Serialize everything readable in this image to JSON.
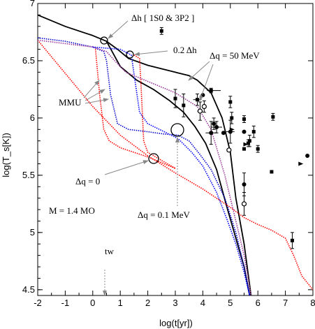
{
  "chart_data": {
    "type": "line",
    "xlabel": "log(t[yr])",
    "ylabel": "log(T_s[K])",
    "xlim": [
      -2,
      8
    ],
    "ylim": [
      4.45,
      7
    ],
    "x_ticks": [
      "-2",
      "-1",
      "0",
      "1",
      "2",
      "3",
      "4",
      "5",
      "6",
      "7",
      "8"
    ],
    "y_ticks": [
      "4.5",
      "5",
      "5.5",
      "6",
      "6.5",
      "7"
    ],
    "grid": false,
    "series": [
      {
        "color": "#000000",
        "style": "solid",
        "x": [
          -2,
          -1,
          0,
          0.5,
          0.9,
          1.3,
          2.0,
          3.0,
          3.5,
          3.8,
          4.3,
          4.7,
          5.0,
          5.2,
          5.5,
          5.75
        ],
        "y": [
          6.9,
          6.8,
          6.72,
          6.67,
          6.6,
          6.52,
          6.46,
          6.4,
          6.37,
          6.33,
          6.22,
          6.0,
          5.7,
          5.3,
          4.9,
          4.45
        ]
      },
      {
        "color": "#000000",
        "style": "solid",
        "x": [
          0.5,
          1.0,
          1.6,
          2.2,
          2.8,
          3.3,
          3.7,
          4.1,
          4.5,
          4.9,
          5.2,
          5.5,
          5.7
        ],
        "y": [
          6.67,
          6.45,
          6.33,
          6.25,
          6.15,
          6.05,
          5.93,
          5.78,
          5.55,
          5.2,
          4.95,
          4.7,
          4.45
        ]
      },
      {
        "color": "#0000cc",
        "style": "dotted",
        "x": [
          -2,
          -1,
          0,
          0.4,
          0.5,
          0.65,
          0.9,
          1.3,
          2.0,
          2.6,
          3.1,
          3.5,
          3.9,
          4.3,
          4.8,
          5.2,
          5.5,
          5.7
        ],
        "y": [
          6.7,
          6.67,
          6.62,
          6.58,
          6.5,
          6.2,
          5.95,
          5.9,
          5.88,
          5.86,
          5.85,
          5.8,
          5.68,
          5.55,
          5.3,
          5.0,
          4.7,
          4.45
        ]
      },
      {
        "color": "#0000ff",
        "style": "dotted",
        "x": [
          0,
          1.0,
          1.4,
          1.55,
          1.7,
          2.0,
          2.6,
          3.1,
          3.6,
          4.0,
          4.5,
          4.9,
          5.2,
          5.5,
          5.7
        ],
        "y": [
          6.62,
          6.6,
          6.55,
          6.3,
          6.05,
          5.95,
          5.88,
          5.82,
          5.7,
          5.58,
          5.35,
          5.1,
          4.9,
          4.65,
          4.45
        ]
      },
      {
        "color": "#ff0000",
        "style": "dotted",
        "x": [
          0.1,
          0.25,
          0.4,
          0.6,
          1.0,
          1.5,
          2.0,
          2.5,
          3.0
        ],
        "y": [
          6.6,
          6.2,
          5.9,
          5.8,
          5.74,
          5.7,
          5.66,
          5.61,
          5.56
        ]
      },
      {
        "color": "#ff0000",
        "style": "dotted",
        "x": [
          1.5,
          1.7,
          1.75,
          1.85,
          2.0,
          2.5,
          3.0
        ],
        "y": [
          6.55,
          6.52,
          6.3,
          5.8,
          5.7,
          5.63,
          5.56
        ]
      },
      {
        "color": "#ff0000",
        "style": "dotted",
        "x": [
          -2,
          -1,
          0,
          1,
          2,
          3,
          4,
          5,
          5.5,
          6,
          6.5,
          7,
          7.3,
          7.6,
          8
        ],
        "y": [
          6.68,
          6.39,
          6.1,
          5.85,
          5.67,
          5.52,
          5.38,
          5.22,
          5.13,
          5.07,
          5.02,
          4.95,
          4.8,
          4.62,
          4.5
        ]
      },
      {
        "color": "#993399",
        "style": "dotted",
        "x": [
          -2,
          -1,
          0,
          0.5,
          0.8,
          1.2,
          2.0,
          3.0,
          3.8,
          4.3,
          4.8,
          5.2,
          5.5,
          5.75
        ],
        "y": [
          6.68,
          6.65,
          6.62,
          6.58,
          6.5,
          6.4,
          6.32,
          6.22,
          6.1,
          5.9,
          5.5,
          5.1,
          4.8,
          4.45
        ]
      }
    ],
    "observations": [
      {
        "x": 2.5,
        "y": 6.76,
        "marker": "square-filled",
        "xerr": [
          0,
          0
        ],
        "yerr": [
          0.03,
          0.03
        ]
      },
      {
        "x": 3.3,
        "y": 6.11,
        "marker": "square-filled",
        "xerr": [
          0,
          0
        ],
        "yerr": [
          0.1,
          0.1
        ]
      },
      {
        "x": 3.0,
        "y": 6.17,
        "marker": "square-filled",
        "xerr": [
          0,
          0
        ],
        "yerr": [
          0.08,
          0.08
        ]
      },
      {
        "x": 3.8,
        "y": 6.16,
        "marker": "square-filled",
        "xerr": [
          0.15,
          0.15
        ],
        "yerr": [
          0.05,
          0.05
        ]
      },
      {
        "x": 4.3,
        "y": 6.24,
        "marker": "square-filled",
        "xerr": [
          0.15,
          0.35
        ],
        "yerr": [
          0.02,
          0.02
        ]
      },
      {
        "x": 3.9,
        "y": 6.06,
        "marker": "circle-open",
        "xerr": [
          0.1,
          0.1
        ],
        "yerr": [
          0.08,
          0.08
        ]
      },
      {
        "x": 4.0,
        "y": 6.2,
        "marker": "circle-filled",
        "xerr": [
          0,
          0
        ],
        "yerr": [
          0,
          0
        ]
      },
      {
        "x": 4.05,
        "y": 6.1,
        "marker": "circle-open",
        "xerr": [
          0,
          0
        ],
        "yerr": [
          0.05,
          0.05
        ]
      },
      {
        "x": 4.3,
        "y": 5.87,
        "marker": "circle-filled",
        "xerr": [
          0.2,
          0.2
        ],
        "yerr": [
          0.1,
          0.1
        ]
      },
      {
        "x": 4.5,
        "y": 5.92,
        "marker": "circle-filled",
        "xerr": [
          0.2,
          0.2
        ],
        "yerr": [
          0.05,
          0.05
        ]
      },
      {
        "x": 4.4,
        "y": 5.95,
        "marker": "circle-filled",
        "xerr": [
          0,
          0
        ],
        "yerr": [
          0.05,
          0.05
        ]
      },
      {
        "x": 5.0,
        "y": 6.14,
        "marker": "square-filled",
        "xerr": [
          0,
          0
        ],
        "yerr": [
          0.05,
          0.05
        ]
      },
      {
        "x": 5.05,
        "y": 6.0,
        "marker": "square-filled",
        "xerr": [
          0,
          0
        ],
        "yerr": [
          0.05,
          0.05
        ]
      },
      {
        "x": 5.5,
        "y": 5.99,
        "marker": "square-filled",
        "xerr": [
          0,
          0
        ],
        "yerr": [
          0.03,
          0.03
        ]
      },
      {
        "x": 4.75,
        "y": 5.87,
        "marker": "circle-filled",
        "xerr": [
          0,
          0
        ],
        "yerr": [
          0,
          0
        ]
      },
      {
        "x": 5.0,
        "y": 5.88,
        "marker": "circle-filled",
        "xerr": [
          0.15,
          0.15
        ],
        "yerr": [
          0.1,
          0.1
        ]
      },
      {
        "x": 5.05,
        "y": 5.9,
        "marker": "triangle-filled",
        "xerr": [
          0,
          0
        ],
        "yerr": [
          0,
          0
        ]
      },
      {
        "x": 5.5,
        "y": 5.88,
        "marker": "circle-filled",
        "xerr": [
          0,
          0
        ],
        "yerr": [
          0,
          0
        ]
      },
      {
        "x": 5.7,
        "y": 5.8,
        "marker": "square-filled",
        "xerr": [
          0,
          0
        ],
        "yerr": [
          0.05,
          0.05
        ]
      },
      {
        "x": 5.55,
        "y": 5.77,
        "marker": "triangle-filled",
        "xerr": [
          0,
          0
        ],
        "yerr": [
          0,
          0
        ]
      },
      {
        "x": 5.65,
        "y": 5.78,
        "marker": "square-filled",
        "xerr": [
          0,
          0
        ],
        "yerr": [
          0.03,
          0.03
        ]
      },
      {
        "x": 5.85,
        "y": 5.88,
        "marker": "square-filled",
        "xerr": [
          0,
          0
        ],
        "yerr": [
          0.05,
          0.05
        ]
      },
      {
        "x": 4.95,
        "y": 5.72,
        "marker": "circle-open",
        "xerr": [
          0,
          0
        ],
        "yerr": [
          0,
          0
        ]
      },
      {
        "x": 5.5,
        "y": 5.73,
        "marker": "square-filled",
        "xerr": [
          0,
          0
        ],
        "yerr": [
          0,
          0
        ]
      },
      {
        "x": 5.5,
        "y": 5.42,
        "marker": "circle-filled",
        "xerr": [
          0,
          0
        ],
        "yerr": [
          0.1,
          0.1
        ]
      },
      {
        "x": 5.5,
        "y": 5.25,
        "marker": "circle-open",
        "xerr": [
          0,
          0
        ],
        "yerr": [
          0.1,
          0.1
        ]
      },
      {
        "x": 6.0,
        "y": 5.73,
        "marker": "square-filled",
        "xerr": [
          0,
          0
        ],
        "yerr": [
          0.03,
          0.03
        ]
      },
      {
        "x": 6.55,
        "y": 6.01,
        "marker": "square-filled",
        "xerr": [
          0,
          0
        ],
        "yerr": [
          0.03,
          0.03
        ]
      },
      {
        "x": 6.5,
        "y": 5.53,
        "marker": "square-filled",
        "xerr": [
          0,
          0
        ],
        "yerr": [
          0,
          0
        ]
      },
      {
        "x": 7.25,
        "y": 4.93,
        "marker": "square-filled",
        "xerr": [
          0,
          0
        ],
        "yerr": [
          0.07,
          0.07
        ]
      },
      {
        "x": 7.55,
        "y": 5.6,
        "marker": "triangle-filled",
        "xerr": [
          0,
          0
        ],
        "yerr": [
          0,
          0
        ]
      },
      {
        "x": 7.8,
        "y": 5.67,
        "marker": "circle-filled",
        "xerr": [
          0,
          0
        ],
        "yerr": [
          0,
          0
        ]
      }
    ],
    "annotations": {
      "delta_h": "Δh [ 1S0 & 3P2 ]",
      "delta_h_02": "0.2 Δh",
      "delta_q_50": "Δq = 50 MeV",
      "mmu": "MMU",
      "delta_q_0": "Δq = 0",
      "delta_q_01": "Δq = 0.1 MeV",
      "mass": "M = 1.4 MO",
      "tw": "tw"
    }
  }
}
